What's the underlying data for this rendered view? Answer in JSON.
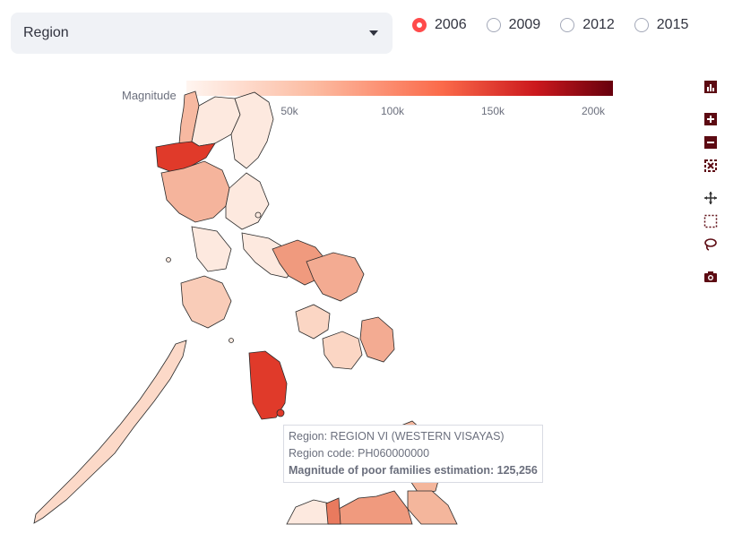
{
  "dropdown": {
    "selected": "Region"
  },
  "years": [
    {
      "label": "2006",
      "checked": true
    },
    {
      "label": "2009",
      "checked": false
    },
    {
      "label": "2012",
      "checked": false
    },
    {
      "label": "2015",
      "checked": false
    }
  ],
  "colorbar": {
    "title": "Magnitude",
    "ticks": [
      "50k",
      "100k",
      "150k",
      "200k"
    ],
    "range": [
      0,
      205000
    ],
    "colors": [
      "#fff5f0",
      "#fcbba1",
      "#fb6a4a",
      "#cb181d",
      "#67000d"
    ]
  },
  "tooltip": {
    "region": "Region: REGION VI (WESTERN VISAYAS)",
    "code": "Region code: PH060000000",
    "magnitude": "Magnitude of poor families estimation: 125,256"
  },
  "modebar": {
    "icons": [
      "bar-chart-icon",
      "zoom-in-icon",
      "zoom-out-icon",
      "autoscale-icon",
      "pan-icon",
      "box-select-icon",
      "lasso-icon",
      "camera-icon"
    ]
  },
  "map_colors": {
    "dark": "#e03a2a",
    "mid": "#f09a7e",
    "light": "#fbd6c4",
    "pale": "#fde9df"
  }
}
